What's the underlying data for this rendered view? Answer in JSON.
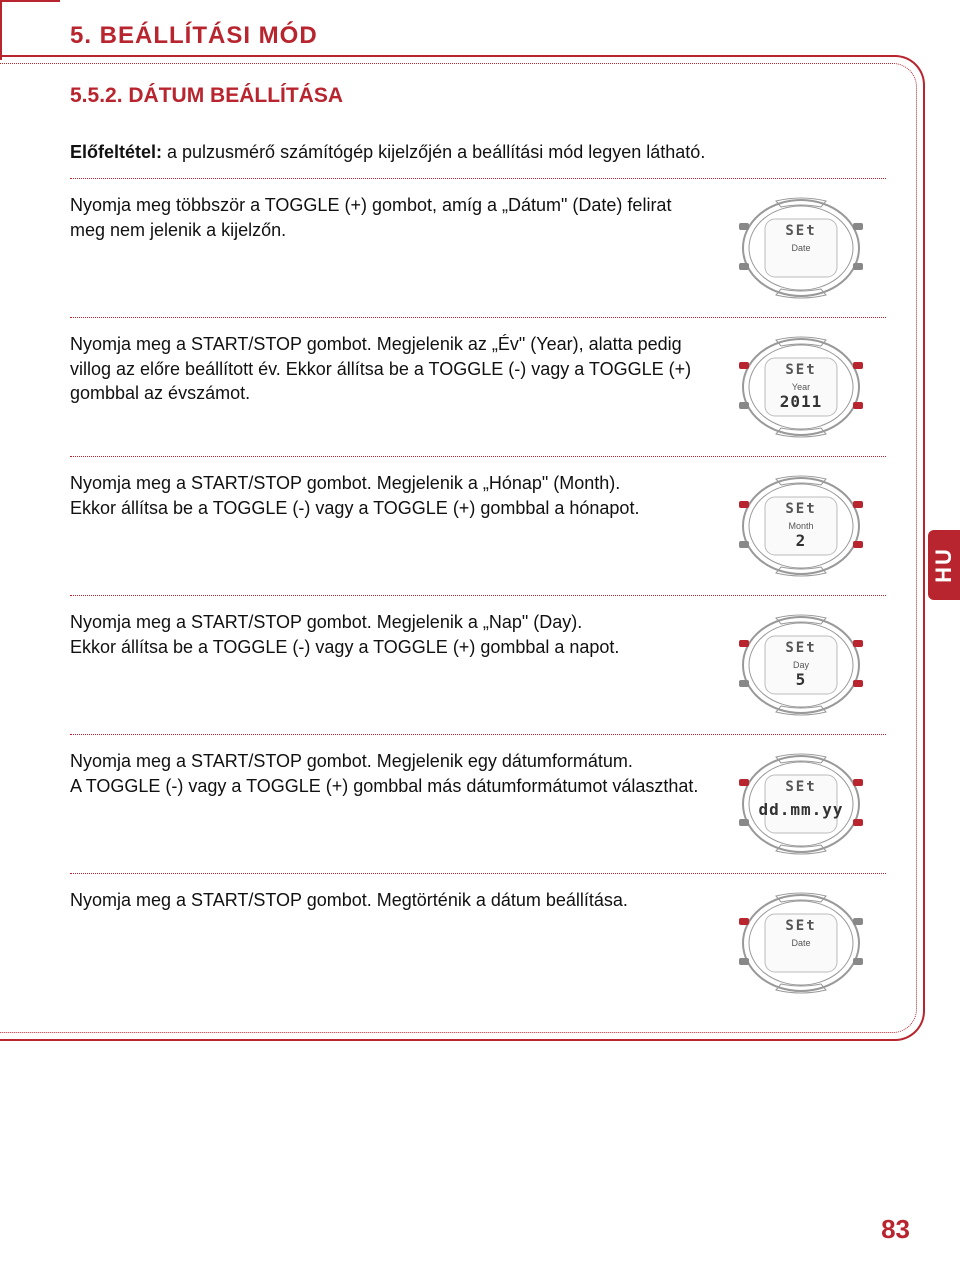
{
  "colors": {
    "accent": "#b8252f",
    "text": "#111",
    "lcd": "#555"
  },
  "header": "5. BEÁLLÍTÁSI MÓD",
  "subheader": "5.5.2. DÁTUM BEÁLLÍTÁSA",
  "sidetab": "HU",
  "pageno": "83",
  "steps": [
    {
      "bold": "Előfeltétel:",
      "text": " a pulzusmérő számítógép kijelzőjén a beállítási mód legyen látható.",
      "watch": null
    },
    {
      "text": "Nyomja meg többször a TOGGLE (+) gombot, amíg a „Dátum\" (Date) felirat meg nem jelenik a kijelzőn.",
      "watch": {
        "top": "SEt",
        "lbl": "Date",
        "main": "",
        "btns": [
          "g",
          "g",
          "g",
          "g"
        ]
      }
    },
    {
      "text": "Nyomja meg a START/STOP gombot. Megjelenik az „Év\" (Year), alatta pedig villog az előre beállított év. Ekkor állítsa be a TOGGLE (-) vagy a TOGGLE (+) gombbal az évszámot.",
      "watch": {
        "top": "SEt",
        "lbl": "Year",
        "main": "2011",
        "btns": [
          "r",
          "g",
          "r",
          "r"
        ]
      }
    },
    {
      "text": "Nyomja meg a START/STOP gombot. Megjelenik a „Hónap\" (Month).\nEkkor állítsa be a TOGGLE (-) vagy a TOGGLE (+) gombbal a hónapot.",
      "watch": {
        "top": "SEt",
        "lbl": "Month",
        "main": "2",
        "btns": [
          "r",
          "g",
          "r",
          "r"
        ]
      }
    },
    {
      "text": "Nyomja meg a START/STOP gombot. Megjelenik a „Nap\" (Day).\nEkkor állítsa be a TOGGLE (-) vagy a TOGGLE (+) gombbal a napot.",
      "watch": {
        "top": "SEt",
        "lbl": "Day",
        "main": "5",
        "btns": [
          "r",
          "g",
          "r",
          "r"
        ]
      }
    },
    {
      "text": "Nyomja meg a START/STOP gombot. Megjelenik egy dátumformátum.\nA TOGGLE (-) vagy a TOGGLE (+) gombbal más dátumformátumot választhat.",
      "watch": {
        "top": "SEt",
        "lbl": "",
        "main": "dd.mm.yy",
        "btns": [
          "r",
          "g",
          "r",
          "r"
        ]
      }
    },
    {
      "text": "Nyomja meg a START/STOP gombot. Megtörténik a dátum beállítása.",
      "watch": {
        "top": "SEt",
        "lbl": "Date",
        "main": "",
        "btns": [
          "r",
          "g",
          "g",
          "g"
        ]
      }
    }
  ],
  "watch_style": {
    "button_colors": {
      "g": "#888",
      "r": "#b8252f"
    },
    "case_stroke": "#999",
    "screen_fill": "#fafafa",
    "screen_stroke": "#bbb"
  }
}
